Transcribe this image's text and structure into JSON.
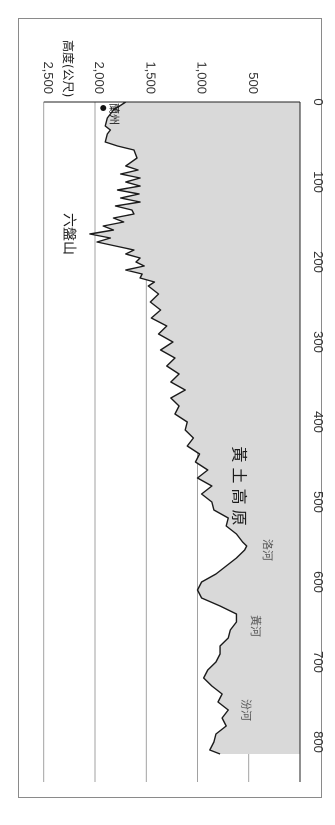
{
  "chart_data": {
    "type": "area",
    "orientation": "rotated-90-clockwise",
    "ylabel": "高度(公尺)",
    "xlabel": "",
    "ylim": [
      0,
      2500
    ],
    "xlim": [
      0,
      850
    ],
    "y_ticks": [
      "500",
      "1,000",
      "1,500",
      "2,000",
      "2,500"
    ],
    "x_ticks": [
      "0",
      "100",
      "200",
      "300",
      "400",
      "500",
      "600",
      "700",
      "800"
    ],
    "grid": true,
    "profile": {
      "x": [
        0,
        10,
        20,
        30,
        35,
        40,
        50,
        55,
        60,
        70,
        80,
        85,
        90,
        95,
        100,
        105,
        110,
        115,
        120,
        125,
        130,
        135,
        140,
        145,
        150,
        155,
        160,
        165,
        170,
        175,
        180,
        185,
        190,
        195,
        200,
        205,
        210,
        215,
        220,
        225,
        230,
        240,
        250,
        260,
        270,
        280,
        290,
        300,
        310,
        320,
        330,
        340,
        350,
        360,
        370,
        380,
        390,
        400,
        410,
        420,
        430,
        440,
        450,
        460,
        470,
        480,
        490,
        500,
        510,
        520,
        530,
        540,
        550,
        555,
        560,
        570,
        580,
        590,
        600,
        610,
        620,
        630,
        640,
        650,
        660,
        670,
        680,
        690,
        700,
        710,
        720,
        730,
        740,
        750,
        760,
        770,
        780,
        790,
        800,
        810,
        815
      ],
      "y": [
        1700,
        1820,
        1880,
        1900,
        1850,
        1880,
        1900,
        1780,
        1620,
        1590,
        1700,
        1580,
        1750,
        1560,
        1700,
        1560,
        1780,
        1570,
        1750,
        1560,
        1800,
        1640,
        1620,
        1820,
        1720,
        1920,
        1820,
        2050,
        1850,
        1980,
        1800,
        1620,
        1700,
        1560,
        1600,
        1520,
        1700,
        1540,
        1560,
        1420,
        1480,
        1380,
        1460,
        1360,
        1450,
        1300,
        1380,
        1240,
        1360,
        1220,
        1300,
        1180,
        1260,
        1120,
        1260,
        1180,
        1220,
        1100,
        1120,
        1040,
        1100,
        980,
        1020,
        900,
        1000,
        860,
        960,
        860,
        840,
        700,
        720,
        620,
        560,
        520,
        540,
        620,
        720,
        820,
        960,
        1000,
        960,
        780,
        620,
        620,
        680,
        700,
        780,
        780,
        820,
        900,
        940,
        860,
        760,
        800,
        700,
        760,
        720,
        820,
        840,
        880,
        780
      ]
    },
    "annotations": [
      {
        "text": "蘭州",
        "x": 15
      },
      {
        "text": "六盤山",
        "x": 165
      },
      {
        "text": "黃 土 高 原",
        "x": 480
      },
      {
        "text": "洛河",
        "x": 560
      },
      {
        "text": "黃河",
        "x": 655
      },
      {
        "text": "汾河",
        "x": 760
      }
    ],
    "colors": {
      "fill": "#d9d9d9",
      "line": "#1a1a1a",
      "grid": "#8a8a8a"
    }
  }
}
